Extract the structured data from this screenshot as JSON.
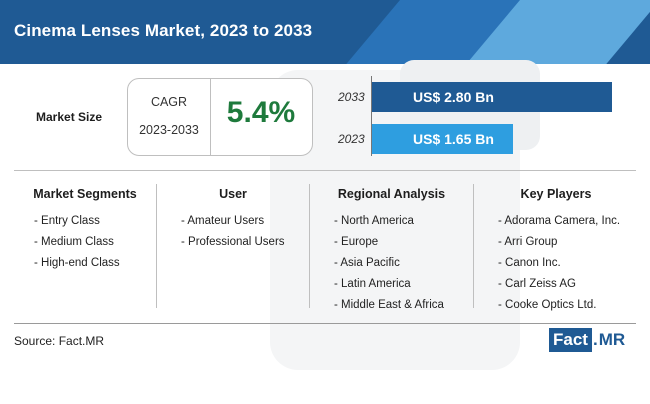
{
  "header": {
    "title": "Cinema Lenses Market, 2023 to 2033"
  },
  "market_size_label": "Market Size",
  "cagr": {
    "label": "CAGR",
    "period": "2023-2033",
    "value": "5.4%"
  },
  "chart_data": {
    "type": "bar",
    "orientation": "horizontal",
    "categories": [
      "2033",
      "2023"
    ],
    "values": [
      2.8,
      1.65
    ],
    "value_labels": [
      "US$ 2.80 Bn",
      "US$ 1.65 Bn"
    ],
    "xlim": [
      0,
      2.85
    ],
    "colors": [
      "#1f5a94",
      "#2e9ee0"
    ],
    "grid": false
  },
  "columns": [
    {
      "heading": "Market Segments",
      "items": [
        "- Entry Class",
        "- Medium Class",
        "- High-end Class"
      ]
    },
    {
      "heading": "User",
      "items": [
        "- Amateur Users",
        "- Professional Users"
      ]
    },
    {
      "heading": "Regional Analysis",
      "items": [
        "- North America",
        "- Europe",
        "- Asia Pacific",
        "- Latin America",
        "- Middle East & Africa"
      ]
    },
    {
      "heading": "Key Players",
      "items": [
        "- Adorama Camera, Inc.",
        "- Arri Group",
        "- Canon Inc.",
        "- Carl Zeiss AG",
        "- Cooke Optics Ltd."
      ]
    }
  ],
  "source": "Source: Fact.MR",
  "logo": {
    "left": "Fact",
    "dot": ".",
    "right": "MR"
  },
  "colors": {
    "brand": "#1f5a94",
    "accent": "#2e9ee0",
    "cagr_green": "#1e7a3c"
  }
}
